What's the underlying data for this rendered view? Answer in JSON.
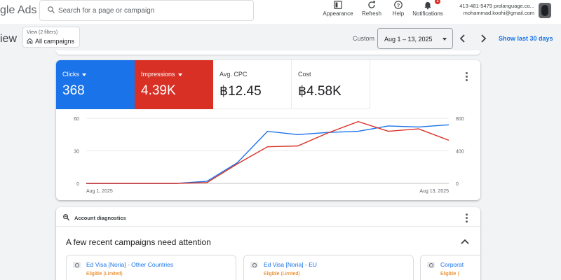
{
  "header": {
    "logo_text": "gle Ads",
    "search_placeholder": "Search for a page or campaign",
    "buttons": [
      {
        "label": "Appearance",
        "icon": "appearance-icon"
      },
      {
        "label": "Refresh",
        "icon": "refresh-icon"
      },
      {
        "label": "Help",
        "icon": "help-icon"
      },
      {
        "label": "Notifications",
        "icon": "bell-icon",
        "badge": "1"
      }
    ],
    "account_id": "413-481-5479 prolanguage.co...",
    "account_email": "mohammad.koohi@gmail.com"
  },
  "subbar": {
    "page_title": "iew",
    "view_filter": "View (2 filters)",
    "view_name": "All campaigns",
    "custom_label": "Custom",
    "date_range": "Aug 1 – 13, 2025",
    "show_last": "Show last 30 days"
  },
  "metrics": [
    {
      "label": "Clicks",
      "value": "368",
      "color": "#1a73e8",
      "selected": true
    },
    {
      "label": "Impressions",
      "value": "4.39K",
      "color": "#d93025",
      "selected": true
    },
    {
      "label": "Avg. CPC",
      "value": "฿12.45",
      "selected": false
    },
    {
      "label": "Cost",
      "value": "฿4.58K",
      "selected": false
    }
  ],
  "chart_data": {
    "type": "line",
    "x": [
      "Aug 1, 2025",
      "Aug 2, 2025",
      "Aug 3, 2025",
      "Aug 4, 2025",
      "Aug 5, 2025",
      "Aug 6, 2025",
      "Aug 7, 2025",
      "Aug 8, 2025",
      "Aug 9, 2025",
      "Aug 10, 2025",
      "Aug 11, 2025",
      "Aug 12, 2025",
      "Aug 13, 2025"
    ],
    "x_tick_labels": [
      "Aug 1, 2025",
      "Aug 13, 2025"
    ],
    "y_left": {
      "ticks": [
        "0",
        "30",
        "60"
      ],
      "ylim": [
        0,
        60
      ]
    },
    "y_right": {
      "ticks": [
        "0",
        "400",
        "800"
      ],
      "ylim": [
        0,
        800
      ]
    },
    "series": [
      {
        "name": "Clicks",
        "axis": "left",
        "color": "#1a73e8",
        "values": [
          0,
          0,
          0,
          0,
          2,
          19,
          48,
          45,
          47,
          48,
          53,
          52,
          54
        ]
      },
      {
        "name": "Impressions",
        "axis": "right",
        "color": "#d93025",
        "values": [
          0,
          0,
          0,
          0,
          10,
          240,
          450,
          460,
          620,
          760,
          640,
          670,
          530
        ]
      }
    ],
    "grid": true
  },
  "diagnostics": {
    "title": "Account diagnostics",
    "heading": "A few recent campaigns need attention",
    "campaigns": [
      {
        "name": "Ed Visa [Noria] - Other Countries",
        "status": "Eligible (Limited)"
      },
      {
        "name": "Ed Visa [Noria] - EU",
        "status": "Eligible (Limited)"
      },
      {
        "name": "Corporat",
        "status": "Eligible ("
      }
    ]
  }
}
